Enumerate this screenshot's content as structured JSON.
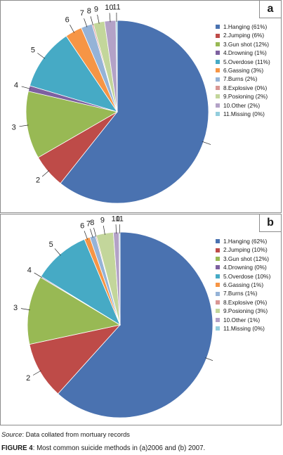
{
  "chart_data": [
    {
      "type": "pie",
      "panel_label": "a",
      "categories": [
        "1.Hanging",
        "2.Jumping",
        "3.Gun shot",
        "4.Drowning",
        "5.Overdose",
        "6.Gassing",
        "7.Burns",
        "8.Explosive",
        "9.Posioning",
        "10.Other",
        "11.Missing"
      ],
      "values": [
        61,
        6,
        12,
        1,
        11,
        3,
        2,
        0,
        2,
        2,
        0
      ],
      "legend_labels": [
        "1.Hanging (61%)",
        "2.Jumping (6%)",
        "3.Gun shot (12%)",
        "4.Drowning (1%)",
        "5.Overdose (11%)",
        "6.Gassing (3%)",
        "7.Burns (2%)",
        "8.Explosive (0%)",
        "9.Posioning (2%)",
        "10.Other (2%)",
        "11.Missing (0%)"
      ],
      "slice_labels": [
        "1",
        "2",
        "3",
        "4",
        "5",
        "6",
        "7",
        "8",
        "9",
        "10",
        "11"
      ],
      "legend_position": "right"
    },
    {
      "type": "pie",
      "panel_label": "b",
      "categories": [
        "1.Hanging",
        "2.Jumping",
        "3.Gun shot",
        "4.Drowning",
        "5.Overdose",
        "6.Gassing",
        "7.Burns",
        "8.Explosive",
        "9.Posioning",
        "10.Other",
        "11.Missing"
      ],
      "values": [
        62,
        10,
        12,
        0,
        10,
        1,
        1,
        0,
        3,
        1,
        0
      ],
      "legend_labels": [
        "1.Hanging (62%)",
        "2.Jumping (10%)",
        "3.Gun shot (12%)",
        "4.Drowning (0%)",
        "5.Overdose (10%)",
        "6.Gassing (1%)",
        "7.Burns (1%)",
        "8.Explosive (0%)",
        "9.Posioning (3%)",
        "10.Other (1%)",
        "11.Missing (0%)"
      ],
      "slice_labels": [
        "1",
        "2",
        "3",
        "4",
        "5",
        "6",
        "7",
        "8",
        "9",
        "10",
        "11"
      ],
      "legend_position": "right"
    }
  ],
  "colors": [
    "#4a72b0",
    "#be4b48",
    "#98b954",
    "#7d60a0",
    "#46aac5",
    "#f69545",
    "#95b3d7",
    "#d99694",
    "#c3d69b",
    "#b3a2c7",
    "#93cddd"
  ],
  "source_prefix": "Source",
  "source_text": ": Data collated from mortuary records",
  "caption_label": "FIGURE 4",
  "caption_text": ": Most common suicide methods in (a)2006 and (b) 2007."
}
